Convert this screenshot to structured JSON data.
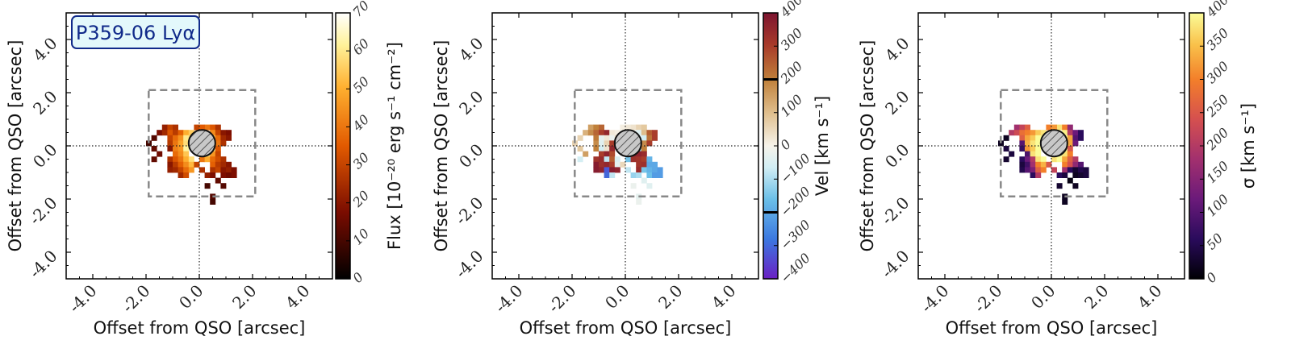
{
  "chart_data": [
    {
      "type": "heatmap",
      "panel": "flux",
      "title_badge": "P359-06 Lyα",
      "xlabel": "Offset from QSO [arcsec]",
      "ylabel": "Offset from QSO [arcsec]",
      "xlim": [
        -5,
        5
      ],
      "ylim": [
        -5,
        5
      ],
      "xticks": [
        "-4.0",
        "-2.0",
        "0.0",
        "2.0",
        "4.0"
      ],
      "yticks": [
        "-4.0",
        "-2.0",
        "0.0",
        "2.0",
        "4.0"
      ],
      "colorbar": {
        "label": "Flux [10⁻²⁰ erg s⁻¹ cm⁻²]",
        "range": [
          0,
          70
        ],
        "ticks": [
          "0",
          "10",
          "20",
          "30",
          "40",
          "50",
          "60",
          "70"
        ],
        "colormap": "afmhot"
      },
      "region_box": [
        -1.9,
        2.1,
        -1.9,
        2.1
      ],
      "qso_mask": {
        "center": [
          0.1,
          0.1
        ],
        "radius": 0.5
      }
    },
    {
      "type": "heatmap",
      "panel": "velocity",
      "xlabel": "Offset from QSO [arcsec]",
      "ylabel": "Offset from QSO [arcsec]",
      "xlim": [
        -5,
        5
      ],
      "ylim": [
        -5,
        5
      ],
      "xticks": [
        "-4.0",
        "-2.0",
        "0.0",
        "2.0",
        "4.0"
      ],
      "yticks": [
        "-4.0",
        "-2.0",
        "0.0",
        "2.0",
        "4.0"
      ],
      "colorbar": {
        "label": "Vel [km s⁻¹]",
        "range": [
          -400,
          400
        ],
        "ticks": [
          "−400",
          "−300",
          "−200",
          "−100",
          "0",
          "100",
          "200",
          "300",
          "400"
        ],
        "marker_lines": [
          -200,
          200
        ],
        "colormap": "diverging blue-white-red"
      },
      "region_box": [
        -1.9,
        2.1,
        -1.9,
        2.1
      ],
      "qso_mask": {
        "center": [
          0.1,
          0.1
        ],
        "radius": 0.5
      }
    },
    {
      "type": "heatmap",
      "panel": "dispersion",
      "xlabel": "Offset from QSO [arcsec]",
      "ylabel": "Offset from QSO [arcsec]",
      "xlim": [
        -5,
        5
      ],
      "ylim": [
        -5,
        5
      ],
      "xticks": [
        "-4.0",
        "-2.0",
        "0.0",
        "2.0",
        "4.0"
      ],
      "yticks": [
        "-4.0",
        "-2.0",
        "0.0",
        "2.0",
        "4.0"
      ],
      "colorbar": {
        "label": "σ [km s⁻¹]",
        "range": [
          0,
          400
        ],
        "ticks": [
          "0",
          "50",
          "100",
          "150",
          "200",
          "250",
          "300",
          "350",
          "400"
        ],
        "colormap": "inferno"
      },
      "region_box": [
        -1.9,
        2.1,
        -1.9,
        2.1
      ],
      "qso_mask": {
        "center": [
          0.1,
          0.1
        ],
        "radius": 0.5
      }
    }
  ],
  "pixel_map": {
    "pixel_size_arcsec": 0.2,
    "cells": [
      [
        -1.3,
        0.7,
        22,
        150,
        180
      ],
      [
        -1.1,
        0.7,
        30,
        200,
        220
      ],
      [
        -0.9,
        0.7,
        26,
        240,
        260
      ],
      [
        -1.5,
        0.5,
        18,
        120,
        200
      ],
      [
        -1.3,
        0.5,
        24,
        180,
        230
      ],
      [
        -1.1,
        0.5,
        34,
        240,
        280
      ],
      [
        -0.9,
        0.5,
        28,
        300,
        300
      ],
      [
        -0.7,
        0.5,
        36,
        350,
        320
      ],
      [
        -0.5,
        0.5,
        50,
        20,
        360
      ],
      [
        -0.3,
        0.5,
        55,
        10,
        380
      ],
      [
        -1.1,
        0.3,
        30,
        210,
        260
      ],
      [
        -0.9,
        0.3,
        38,
        -30,
        330
      ],
      [
        -0.7,
        0.3,
        45,
        20,
        360
      ],
      [
        -0.5,
        0.3,
        60,
        -20,
        400
      ],
      [
        -0.3,
        0.3,
        58,
        40,
        390
      ],
      [
        -1.1,
        0.1,
        28,
        180,
        100
      ],
      [
        -0.9,
        0.1,
        40,
        -40,
        340
      ],
      [
        -0.7,
        0.1,
        48,
        60,
        380
      ],
      [
        -0.5,
        0.1,
        58,
        300,
        400
      ],
      [
        -1.5,
        -0.3,
        16,
        150,
        40
      ],
      [
        -1.1,
        -0.1,
        20,
        200,
        70
      ],
      [
        -0.9,
        -0.1,
        42,
        -60,
        320
      ],
      [
        -0.7,
        -0.1,
        46,
        30,
        360
      ],
      [
        -0.5,
        -0.1,
        62,
        350,
        400
      ],
      [
        -0.9,
        -0.3,
        38,
        300,
        90
      ],
      [
        -0.7,
        -0.3,
        44,
        360,
        380
      ],
      [
        -0.5,
        -0.3,
        54,
        280,
        400
      ],
      [
        -1.1,
        -0.5,
        26,
        320,
        60
      ],
      [
        -0.9,
        -0.5,
        34,
        340,
        120
      ],
      [
        -0.7,
        -0.5,
        40,
        -80,
        200
      ],
      [
        -0.5,
        -0.5,
        50,
        250,
        380
      ],
      [
        -0.3,
        -0.5,
        58,
        -50,
        400
      ],
      [
        -1.1,
        -0.7,
        20,
        380,
        40
      ],
      [
        -0.9,
        -0.7,
        28,
        330,
        80
      ],
      [
        -0.7,
        -0.7,
        36,
        350,
        180
      ],
      [
        -0.5,
        -0.7,
        44,
        300,
        300
      ],
      [
        -0.3,
        -0.7,
        52,
        -30,
        340
      ],
      [
        -1.1,
        -0.9,
        22,
        380,
        50
      ],
      [
        -0.9,
        -0.9,
        24,
        360,
        100
      ],
      [
        -0.7,
        -0.9,
        30,
        -320,
        140
      ],
      [
        -0.5,
        -0.9,
        38,
        380,
        260
      ],
      [
        -0.3,
        -0.9,
        46,
        360,
        300
      ],
      [
        -0.7,
        -1.1,
        24,
        -300,
        60
      ],
      [
        -0.5,
        -1.1,
        32,
        -80,
        200
      ],
      [
        0.3,
        0.7,
        40,
        30,
        380
      ],
      [
        0.5,
        0.7,
        34,
        60,
        300
      ],
      [
        0.7,
        0.7,
        26,
        80,
        160
      ],
      [
        0.5,
        0.5,
        44,
        -40,
        390
      ],
      [
        0.7,
        0.5,
        30,
        100,
        200
      ],
      [
        0.9,
        0.5,
        20,
        250,
        120
      ],
      [
        1.1,
        0.5,
        18,
        300,
        60
      ],
      [
        0.5,
        0.3,
        52,
        -20,
        400
      ],
      [
        0.7,
        0.3,
        38,
        -60,
        330
      ],
      [
        0.9,
        0.3,
        24,
        220,
        100
      ],
      [
        1.1,
        0.3,
        20,
        300,
        60
      ],
      [
        0.5,
        0.1,
        56,
        -40,
        400
      ],
      [
        0.7,
        0.1,
        40,
        180,
        330
      ],
      [
        0.9,
        0.1,
        26,
        300,
        120
      ],
      [
        0.3,
        -0.3,
        60,
        360,
        400
      ],
      [
        0.5,
        -0.1,
        58,
        -120,
        400
      ],
      [
        0.7,
        -0.1,
        34,
        200,
        250
      ],
      [
        0.1,
        -0.5,
        40,
        -150,
        380
      ],
      [
        0.3,
        -0.5,
        50,
        330,
        400
      ],
      [
        0.5,
        -0.3,
        46,
        360,
        380
      ],
      [
        0.7,
        -0.3,
        30,
        340,
        300
      ],
      [
        0.5,
        -0.5,
        38,
        320,
        330
      ],
      [
        0.7,
        -0.5,
        32,
        300,
        260
      ],
      [
        0.9,
        -0.5,
        26,
        -180,
        200
      ],
      [
        0.5,
        -0.7,
        36,
        320,
        300
      ],
      [
        0.7,
        -0.7,
        28,
        330,
        240
      ],
      [
        0.9,
        -0.7,
        24,
        -200,
        160
      ],
      [
        1.1,
        -0.7,
        20,
        -200,
        100
      ],
      [
        0.5,
        -0.9,
        26,
        340,
        180
      ],
      [
        0.7,
        -0.9,
        30,
        -150,
        60
      ],
      [
        0.9,
        -0.9,
        20,
        -180,
        30
      ],
      [
        1.1,
        -0.9,
        22,
        -200,
        50
      ],
      [
        1.3,
        -0.9,
        18,
        -220,
        40
      ],
      [
        0.9,
        -1.1,
        18,
        -160,
        20
      ],
      [
        1.1,
        -1.1,
        16,
        -220,
        30
      ],
      [
        1.3,
        -1.1,
        18,
        -220,
        40
      ],
      [
        0.3,
        -1.1,
        22,
        -120,
        60
      ],
      [
        0.5,
        -1.1,
        18,
        -100,
        40
      ],
      [
        -1.7,
        0.3,
        12,
        60,
        20
      ],
      [
        -1.7,
        -0.5,
        14,
        -60,
        30
      ],
      [
        0.9,
        -1.5,
        12,
        -40,
        20
      ],
      [
        0.7,
        -1.3,
        14,
        -40,
        10
      ],
      [
        -0.1,
        0.7,
        30,
        10,
        300
      ],
      [
        0.1,
        0.7,
        35,
        20,
        320
      ],
      [
        -0.1,
        -0.7,
        30,
        50,
        250
      ],
      [
        0.1,
        -0.9,
        26,
        -80,
        220
      ],
      [
        0.3,
        -1.5,
        10,
        -20,
        30
      ],
      [
        0.5,
        -1.9,
        12,
        -30,
        20
      ],
      [
        0.5,
        -2.1,
        10,
        -20,
        20
      ],
      [
        -1.9,
        0.1,
        10,
        60,
        20
      ],
      [
        -1.7,
        -0.1,
        14,
        80,
        40
      ]
    ]
  }
}
